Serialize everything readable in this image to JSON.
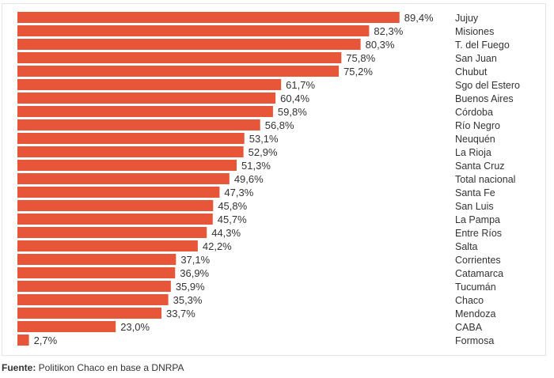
{
  "chart_data": {
    "type": "bar",
    "orientation": "horizontal",
    "title": "",
    "xlabel": "",
    "ylabel": "",
    "xlim": [
      0,
      100
    ],
    "grid": false,
    "legend": "none",
    "bar_color": "#e8563a",
    "value_suffix": "%",
    "categories": [
      "Jujuy",
      "Misiones",
      "T. del Fuego",
      "San Juan",
      "Chubut",
      "Sgo del Estero",
      "Buenos Aires",
      "Córdoba",
      "Río Negro",
      "Neuquén",
      "La Rioja",
      "Santa Cruz",
      "Total nacional",
      "Santa Fe",
      "San Luis",
      "La Pampa",
      "Entre Ríos",
      "Salta",
      "Corrientes",
      "Catamarca",
      "Tucumán",
      "Chaco",
      "Mendoza",
      "CABA",
      "Formosa"
    ],
    "values": [
      89.4,
      82.3,
      80.3,
      75.8,
      75.2,
      61.7,
      60.4,
      59.8,
      56.8,
      53.1,
      52.9,
      51.3,
      49.6,
      47.3,
      45.8,
      45.7,
      44.3,
      42.2,
      37.1,
      36.9,
      35.9,
      35.3,
      33.7,
      23.0,
      2.7
    ],
    "value_labels": [
      "89,4%",
      "82,3%",
      "80,3%",
      "75,8%",
      "75,2%",
      "61,7%",
      "60,4%",
      "59,8%",
      "56,8%",
      "53,1%",
      "52,9%",
      "51,3%",
      "49,6%",
      "47,3%",
      "45,8%",
      "45,7%",
      "44,3%",
      "42,2%",
      "37,1%",
      "36,9%",
      "35,9%",
      "35,3%",
      "33,7%",
      "23,0%",
      "2,7%"
    ]
  },
  "source": {
    "label": "Fuente:",
    "text": " Politikon Chaco en base a DNRPA"
  }
}
